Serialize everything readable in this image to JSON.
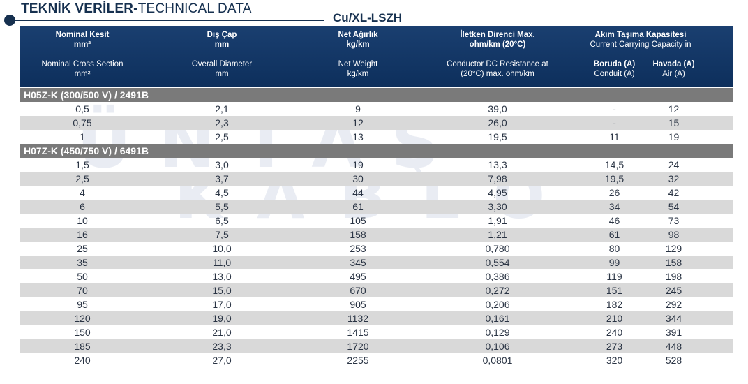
{
  "header": {
    "title_bold": "TEKNİK VERİLER-",
    "title_light": "TECHNICAL DATA",
    "subtitle": "Cu/XL-LSZH"
  },
  "watermark": {
    "line1": "ÜNTAŞ",
    "line2": "KABLO"
  },
  "columns": {
    "col1": {
      "tr1": "Nominal Kesit",
      "tr2": "mm²",
      "en1": "Nominal Cross Section",
      "en2": "mm²"
    },
    "col2": {
      "tr1": "Dış Çap",
      "tr2": "mm",
      "en1": "Overall Diameter",
      "en2": "mm"
    },
    "col3": {
      "tr1": "Net Ağırlık",
      "tr2": "kg/km",
      "en1": "Net Weight",
      "en2": "kg/km"
    },
    "col4": {
      "tr1": "İletken Direnci Max.",
      "tr2": "ohm/km (20°C)",
      "en1": "Conductor DC Resistance at",
      "en2": "(20°C) max. ohm/km"
    },
    "col56": {
      "tr1": "Akım Taşıma Kapasitesi",
      "tr2": "Current Carrying Capacity in"
    },
    "col5": {
      "tr": "Boruda (A)",
      "en": "Conduit (A)"
    },
    "col6": {
      "tr": "Havada (A)",
      "en": "Air (A)"
    }
  },
  "sections": [
    {
      "title": "H05Z-K (300/500 V) / 2491B",
      "rows": [
        [
          "0,5",
          "2,1",
          "9",
          "39,0",
          "-",
          "12"
        ],
        [
          "0,75",
          "2,3",
          "12",
          "26,0",
          "-",
          "15"
        ],
        [
          "1",
          "2,5",
          "13",
          "19,5",
          "11",
          "19"
        ]
      ]
    },
    {
      "title": "H07Z-K (450/750 V) / 6491B",
      "rows": [
        [
          "1,5",
          "3,0",
          "19",
          "13,3",
          "14,5",
          "24"
        ],
        [
          "2,5",
          "3,7",
          "30",
          "7,98",
          "19,5",
          "32"
        ],
        [
          "4",
          "4,5",
          "44",
          "4,95",
          "26",
          "42"
        ],
        [
          "6",
          "5,5",
          "61",
          "3,30",
          "34",
          "54"
        ],
        [
          "10",
          "6,5",
          "105",
          "1,91",
          "46",
          "73"
        ],
        [
          "16",
          "7,5",
          "158",
          "1,21",
          "61",
          "98"
        ],
        [
          "25",
          "10,0",
          "253",
          "0,780",
          "80",
          "129"
        ],
        [
          "35",
          "11,0",
          "345",
          "0,554",
          "99",
          "158"
        ],
        [
          "50",
          "13,0",
          "495",
          "0,386",
          "119",
          "198"
        ],
        [
          "70",
          "15,0",
          "670",
          "0,272",
          "151",
          "245"
        ],
        [
          "95",
          "17,0",
          "905",
          "0,206",
          "182",
          "292"
        ],
        [
          "120",
          "19,0",
          "1132",
          "0,161",
          "210",
          "344"
        ],
        [
          "150",
          "21,0",
          "1415",
          "0,129",
          "240",
          "391"
        ],
        [
          "185",
          "23,3",
          "1720",
          "0,106",
          "273",
          "448"
        ],
        [
          "240",
          "27,0",
          "2255",
          "0,0801",
          "320",
          "528"
        ]
      ]
    }
  ]
}
